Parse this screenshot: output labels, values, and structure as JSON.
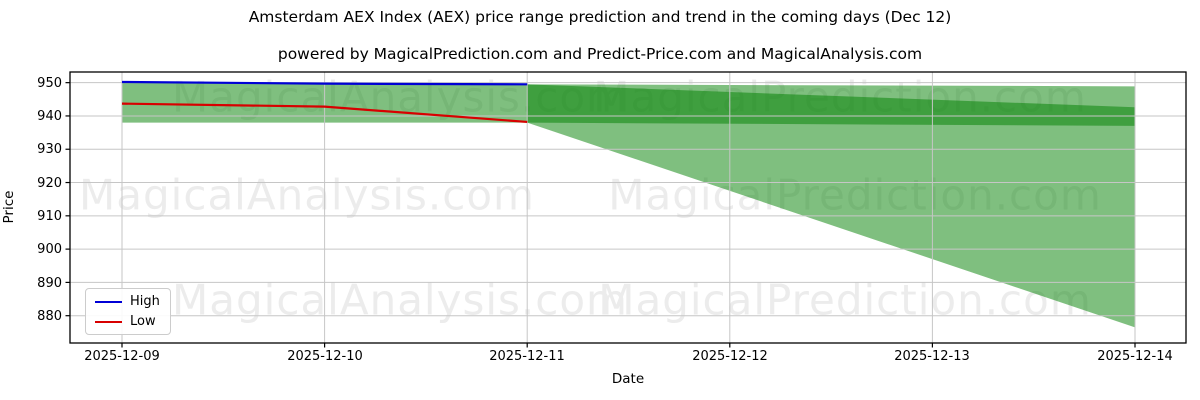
{
  "title": "Amsterdam AEX Index (AEX) price range prediction and trend in the coming days (Dec 12)",
  "subtitle": "powered by MagicalPrediction.com and Predict-Price.com and MagicalAnalysis.com",
  "watermarks": {
    "left": "MagicalAnalysis.com",
    "right": "MagicalPrediction.com"
  },
  "axes": {
    "x": {
      "label": "Date",
      "ticks": [
        "2025-12-09",
        "2025-12-10",
        "2025-12-11",
        "2025-12-12",
        "2025-12-13",
        "2025-12-14"
      ]
    },
    "y": {
      "label": "Price",
      "ticks": [
        "950",
        "940",
        "930",
        "920",
        "910",
        "900",
        "890",
        "880"
      ]
    }
  },
  "legend": {
    "items": [
      {
        "label": "High",
        "color": "#0000d6"
      },
      {
        "label": "Low",
        "color": "#d80000"
      }
    ]
  },
  "chart_data": {
    "type": "line",
    "title": "Amsterdam AEX Index (AEX) price range prediction and trend in the coming days (Dec 12)",
    "xlabel": "Date",
    "ylabel": "Price",
    "x": [
      "2025-12-09",
      "2025-12-10",
      "2025-12-11",
      "2025-12-12",
      "2025-12-13",
      "2025-12-14"
    ],
    "ylim": [
      871.8,
      953.2
    ],
    "grid": true,
    "legend_position": "lower left",
    "series": [
      {
        "name": "High",
        "color": "#0000d6",
        "x_index": [
          0,
          1,
          2
        ],
        "values": [
          950.2,
          949.7,
          949.5
        ]
      },
      {
        "name": "Low",
        "color": "#d80000",
        "x_index": [
          0,
          1,
          2
        ],
        "values": [
          943.7,
          942.8,
          938.2
        ]
      }
    ],
    "fills": {
      "color": "#008000",
      "alpha": 0.5,
      "history_band": {
        "x_index": [
          0,
          1,
          2
        ],
        "top": [
          950.2,
          949.7,
          949.5
        ],
        "bottom": 938.0
      },
      "forecast_range": {
        "x_index": [
          2,
          5
        ],
        "top": [
          949.5,
          948.9
        ],
        "bottom": [
          938.0,
          876.5
        ]
      },
      "forecast_trend_band": {
        "x_index": [
          2,
          5
        ],
        "top": [
          949.5,
          942.6
        ],
        "bottom": [
          938.0,
          937.0
        ]
      }
    }
  }
}
